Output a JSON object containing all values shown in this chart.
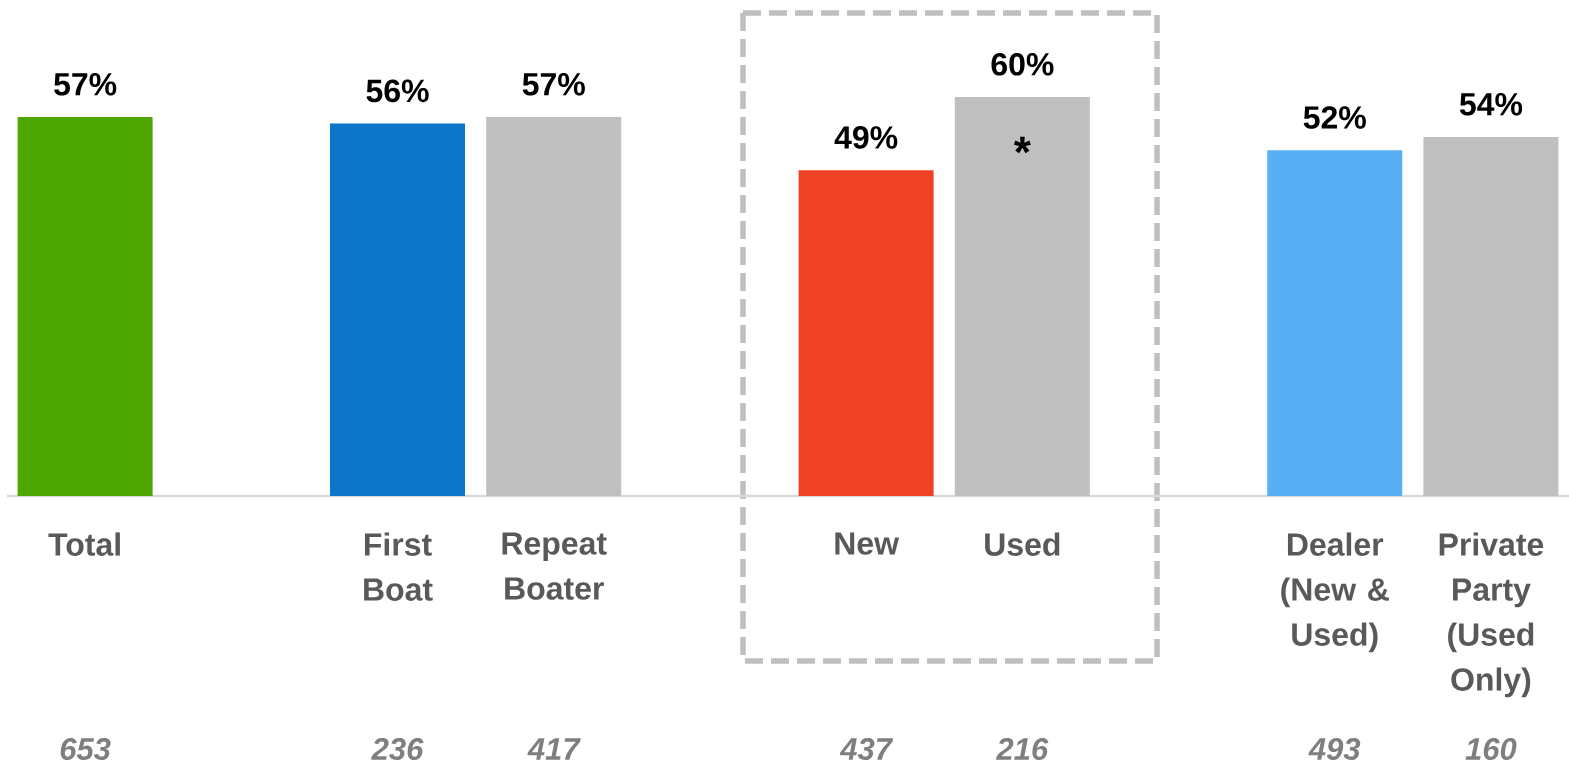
{
  "chart_data": {
    "type": "bar",
    "categories": [
      "Total",
      null,
      "First Boat",
      "Repeat Boater",
      null,
      "New",
      "Used",
      null,
      "Dealer (New & Used)",
      "Private Party (Used Only)"
    ],
    "values": [
      57,
      null,
      56,
      57,
      null,
      49,
      60,
      null,
      52,
      54
    ],
    "colors": [
      "#4ea600",
      null,
      "#0e76c8",
      "#bfbfbf",
      null,
      "#ef4123",
      "#bfbfbf",
      null,
      "#59aff4",
      "#bfbfbf"
    ],
    "value_labels": [
      "57%",
      null,
      "56%",
      "57%",
      null,
      "49%",
      "60%",
      null,
      "52%",
      "54%"
    ],
    "tick_labels": "x",
    "annotations": [
      {
        "text": "*",
        "x": "Used",
        "y": 60
      },
      "653",
      "236",
      "417",
      "437",
      "216",
      "493",
      "160"
    ]
  }
}
